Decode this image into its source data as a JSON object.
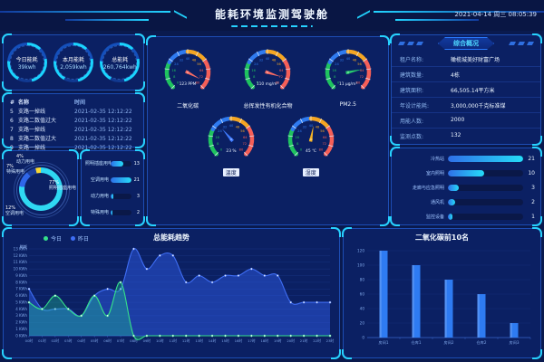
{
  "header": {
    "title": "能耗环境监测驾驶舱",
    "datetime": "2021-04-14 周三 08:05:39"
  },
  "kpis": [
    {
      "label": "今日能耗",
      "value": "39kwh"
    },
    {
      "label": "本月能耗",
      "value": "2,059kwh"
    },
    {
      "label": "总能耗",
      "value": "260,764kwh"
    }
  ],
  "alarm_table": {
    "columns": [
      "#",
      "名称",
      "时间"
    ],
    "rows": [
      {
        "idx": "5",
        "name": "支路一掉线",
        "time": "2021-02-35 12:12:22"
      },
      {
        "idx": "6",
        "name": "支路二数值过大",
        "time": "2021-02-35 12:12:22"
      },
      {
        "idx": "7",
        "name": "支路一掉线",
        "time": "2021-02-35 12:12:22"
      },
      {
        "idx": "8",
        "name": "支路二数值过大",
        "time": "2021-02-35 12:12:22"
      },
      {
        "idx": "9",
        "name": "支路一掉线",
        "time": "2021-02-35 12:12:22"
      }
    ]
  },
  "usage_bars": {
    "max": 21,
    "rows": [
      {
        "label": "照明插座用电",
        "value": 13
      },
      {
        "label": "空调用电",
        "value": 21
      },
      {
        "label": "动力用电",
        "value": 3
      },
      {
        "label": "特殊用电",
        "value": 2
      }
    ]
  },
  "gauges": {
    "min": 0,
    "max": 80,
    "tick_step": 8,
    "segments": [
      {
        "to": 22,
        "color": "#1fc35f"
      },
      {
        "to": 40,
        "color": "#2f7bf0"
      },
      {
        "to": 57,
        "color": "#f5a623"
      },
      {
        "to": 80,
        "color": "#f55f58"
      }
    ],
    "items": [
      {
        "name": "二氧化碳",
        "reading": "123 PPM",
        "needle_value": 75,
        "needle_color": "#f56a63",
        "boxed": false
      },
      {
        "name": "总挥发性有机化合物",
        "reading": "110 mg/m³",
        "needle_value": 72,
        "needle_color": "#f56a63",
        "boxed": false
      },
      {
        "name": "PM2.5",
        "reading": "11 μg/m³",
        "needle_value": 63,
        "needle_color": "#27c96d",
        "boxed": false
      },
      {
        "name": "温度",
        "reading": "23 %",
        "needle_value": 28,
        "needle_color": "#3f7bff",
        "boxed": true
      },
      {
        "name": "湿度",
        "reading": "45 ℃",
        "needle_value": 43,
        "needle_color": "#f5b324",
        "boxed": true
      }
    ]
  },
  "overview": {
    "title": "综合概况",
    "rows": [
      {
        "label": "租户名称:",
        "value": "橄榄城美好财富广场"
      },
      {
        "label": "建筑数量:",
        "value": "4栋"
      },
      {
        "label": "建筑面积:",
        "value": "66,505.14平方米"
      },
      {
        "label": "年设计能耗:",
        "value": "3,000,000千克标准煤"
      },
      {
        "label": "用能人数:",
        "value": "2000"
      },
      {
        "label": "监测点数:",
        "value": "132"
      }
    ]
  },
  "device_bars": {
    "max": 21,
    "rows": [
      {
        "label": "冷热站",
        "value": 21
      },
      {
        "label": "室内照明",
        "value": 10
      },
      {
        "label": "走廊与应急照明",
        "value": 3
      },
      {
        "label": "通风机",
        "value": 2
      },
      {
        "label": "监控设备",
        "value": 1
      }
    ]
  },
  "chart_data": [
    {
      "id": "energy_trend",
      "type": "area",
      "title": "总能耗趋势",
      "ylabel": "能耗",
      "y_unit": "KWh",
      "ylim": [
        0,
        13
      ],
      "grid": true,
      "legend_position": "top-left",
      "x": [
        "00时",
        "01时",
        "02时",
        "03时",
        "04时",
        "05时",
        "06时",
        "07时",
        "08时",
        "09时",
        "10时",
        "11时",
        "12时",
        "13时",
        "14时",
        "15时",
        "16时",
        "17时",
        "18时",
        "19时",
        "20时",
        "21时",
        "22时",
        "23时"
      ],
      "series": [
        {
          "name": "昨日",
          "color": "#3f6ef5",
          "fill": "rgba(45,90,230,0.50)",
          "values": [
            7,
            4,
            4,
            4,
            3,
            6,
            7,
            7,
            13,
            10,
            12,
            12,
            8,
            9,
            8,
            9,
            9,
            10,
            9,
            9,
            5,
            5,
            5,
            5
          ]
        },
        {
          "name": "今日",
          "color": "#35e08a",
          "fill": "rgba(32,200,150,0.35)",
          "values": [
            5,
            4,
            6,
            4,
            3,
            6,
            3,
            8,
            0,
            0,
            0,
            0,
            0,
            0,
            0,
            0,
            0,
            0,
            0,
            0,
            0,
            0,
            0,
            0
          ]
        }
      ]
    },
    {
      "id": "co2_top10",
      "type": "bar",
      "title": "二氧化碳前10名",
      "categories": [
        "房间1",
        "仓库1",
        "房间2",
        "仓库2",
        "房间3"
      ],
      "values": [
        120,
        100,
        80,
        60,
        20
      ],
      "ylim": [
        0,
        120
      ],
      "y_tick_step": 20,
      "bar_color": "#2e7bf2"
    },
    {
      "id": "energy_share",
      "type": "pie",
      "slices": [
        {
          "label": "照明插座用电",
          "pct": 77,
          "color": "#2fd8f2"
        },
        {
          "label": "空调用电",
          "pct": 12,
          "color": "#2f66e8"
        },
        {
          "label": "特殊用电",
          "pct": 7,
          "color": "#1b3f9e"
        },
        {
          "label": "动力用电",
          "pct": 4,
          "color": "#f7d633"
        }
      ]
    }
  ]
}
